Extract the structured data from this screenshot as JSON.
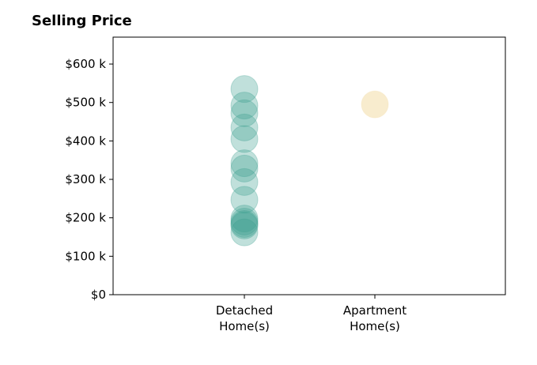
{
  "chart_data": {
    "type": "scatter",
    "title": "Selling Price",
    "xlabel": "",
    "ylabel": "",
    "categories": [
      "Detached\nHome(s)",
      "Apartment\nHome(s)"
    ],
    "ylim": [
      0,
      670000
    ],
    "yticks": [
      0,
      100000,
      200000,
      300000,
      400000,
      500000,
      600000
    ],
    "ytick_labels": [
      "$0",
      "$100 k",
      "$200 k",
      "$300 k",
      "$400 k",
      "$500 k",
      "$600 k"
    ],
    "grid": false,
    "series": [
      {
        "category_index": 0,
        "color": "#3a9e8f",
        "values": [
          535000,
          492000,
          472000,
          435000,
          405000,
          342000,
          328000,
          293000,
          247000,
          198000,
          190000,
          184000,
          180000,
          162000
        ]
      },
      {
        "category_index": 1,
        "color": "#f3dca5",
        "values": [
          495000
        ]
      }
    ]
  }
}
